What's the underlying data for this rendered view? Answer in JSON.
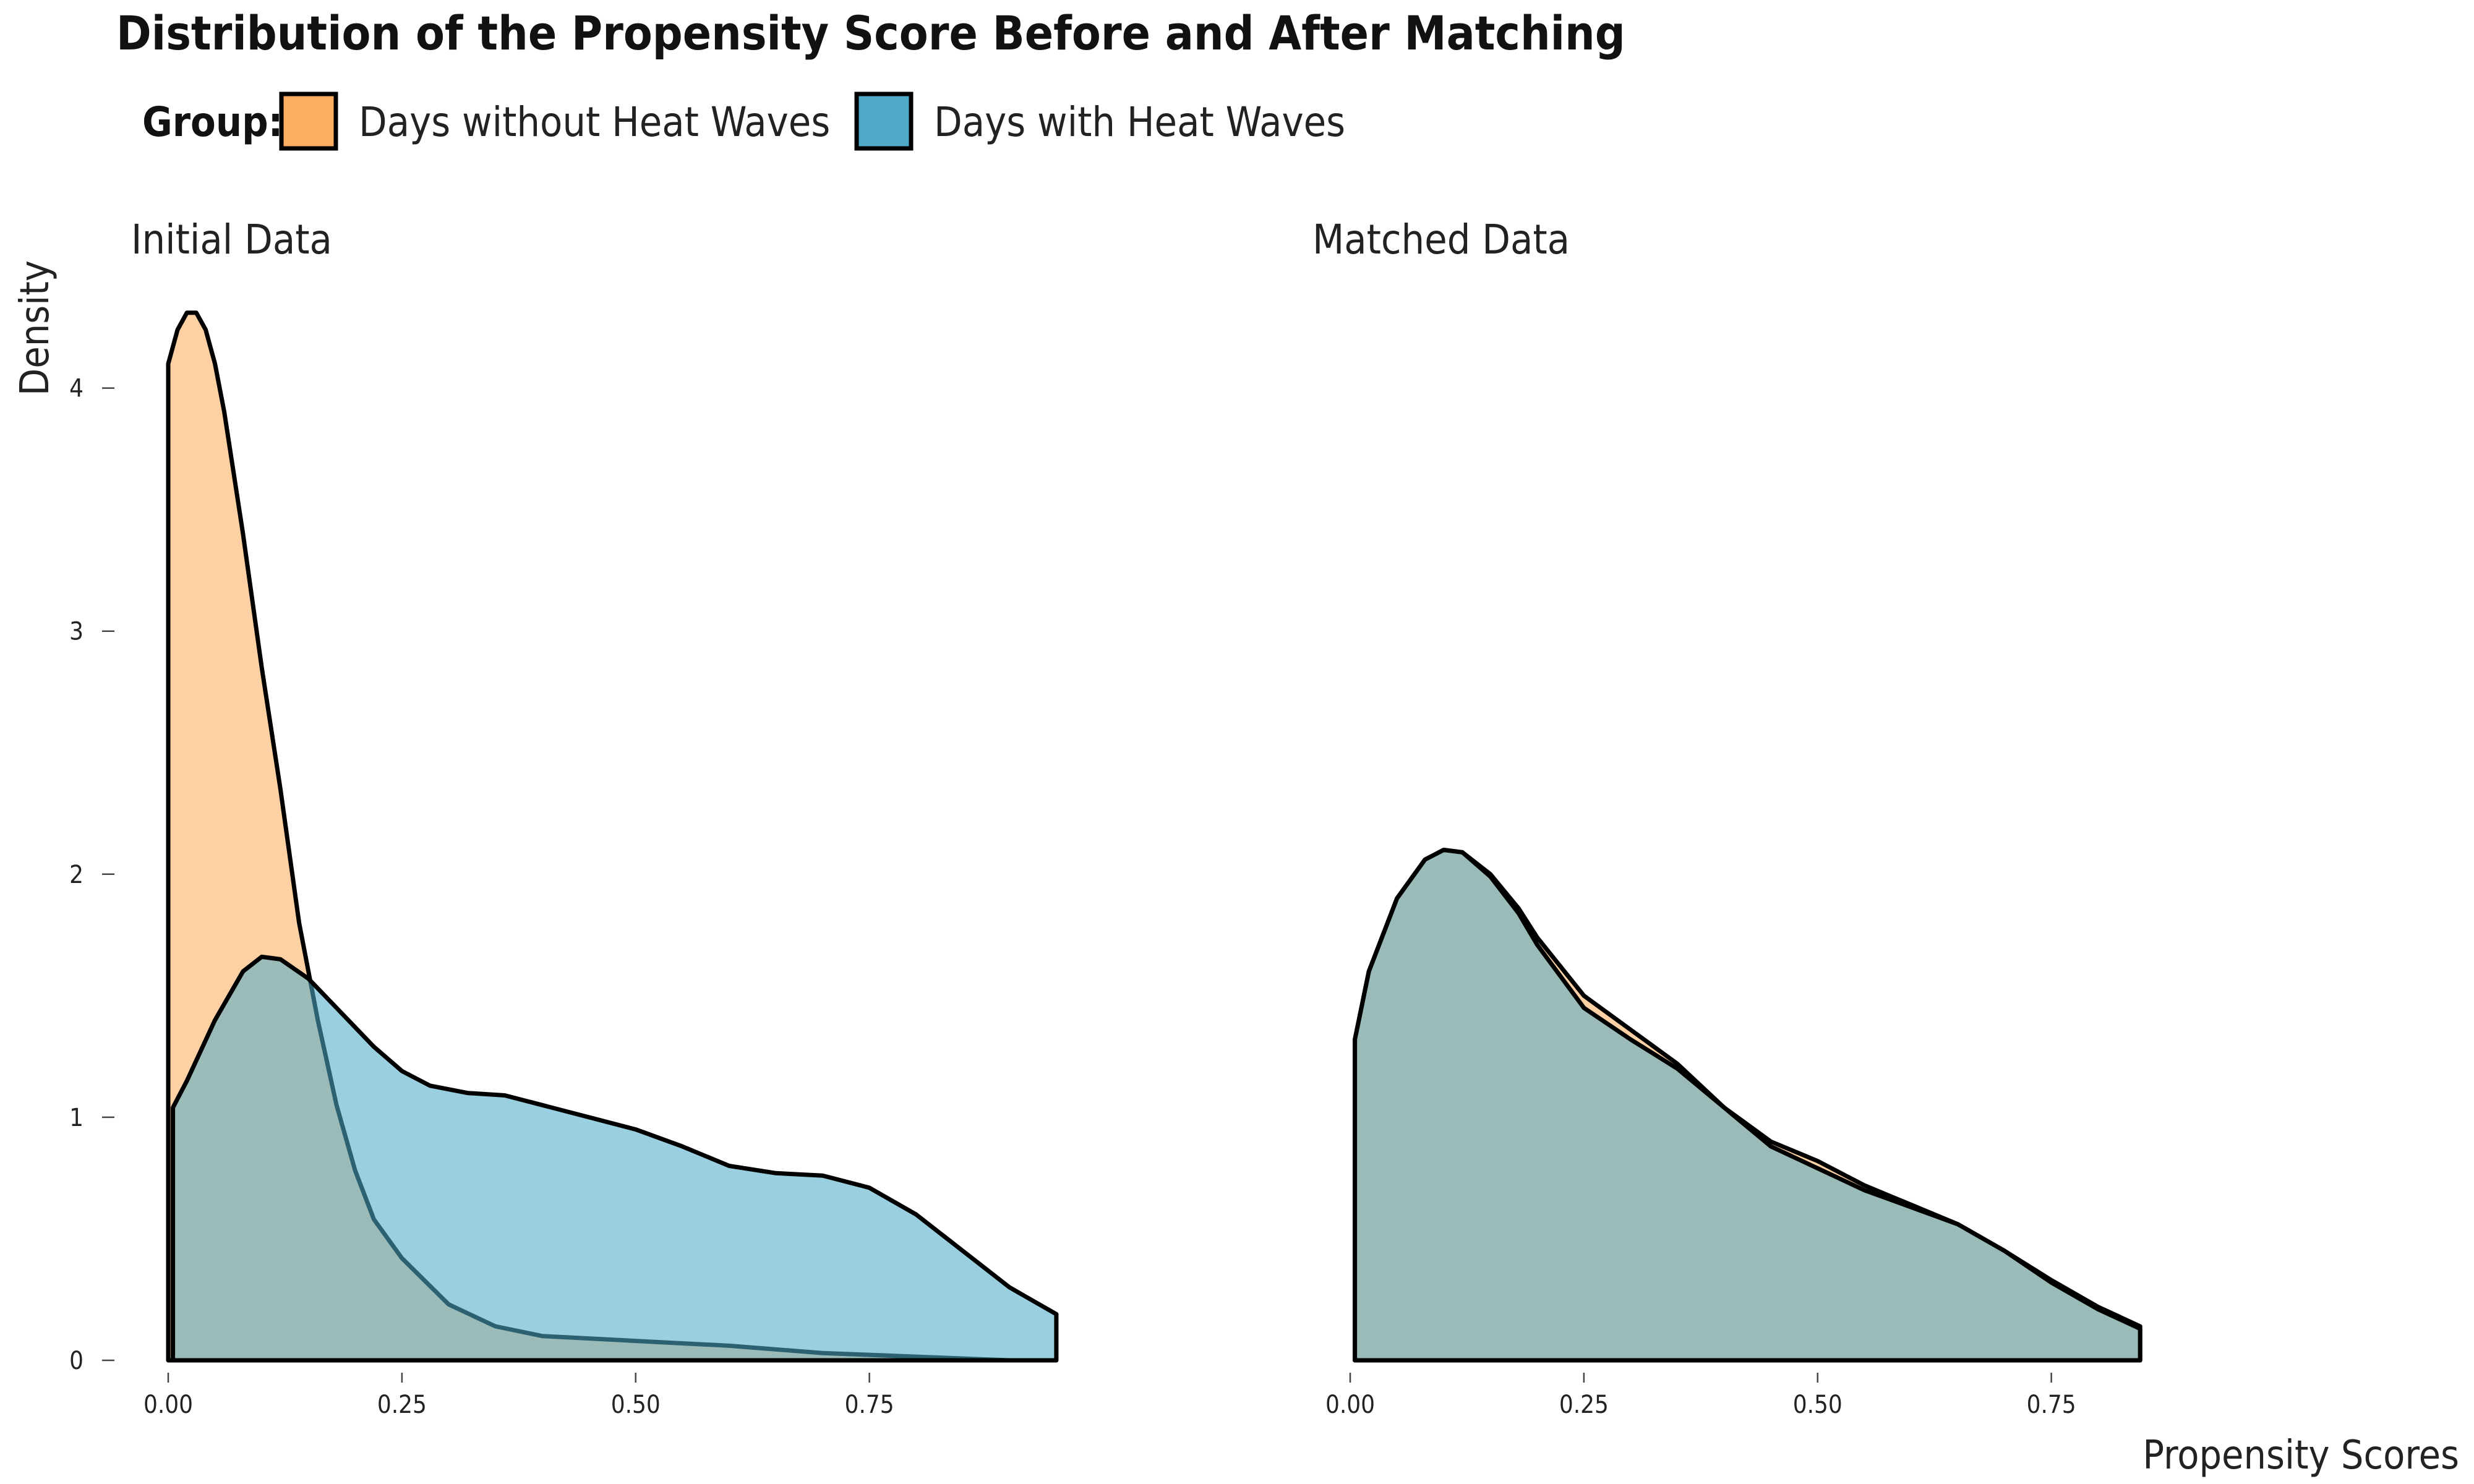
{
  "colors": {
    "without": "#fdae61",
    "with": "#4eaac7",
    "text": "#111111"
  },
  "chart_data": {
    "type": "area",
    "title": "Distribution of the Propensity Score Before and After Matching",
    "legend": {
      "title": "Group:",
      "placement": "top-left",
      "entries": [
        {
          "label": "Days without Heat Waves",
          "color": "#fdae61"
        },
        {
          "label": "Days with Heat Waves",
          "color": "#4eaac7"
        }
      ]
    },
    "ylabel": "Density",
    "xlabel": "Propensity Scores",
    "grid": false,
    "ylim": [
      0,
      4.35
    ],
    "yticks": [
      0,
      1,
      2,
      3,
      4
    ],
    "xticks": [
      0.0,
      0.25,
      0.5,
      0.75
    ],
    "xtick_labels": [
      "0.00",
      "0.25",
      "0.50",
      "0.75"
    ],
    "ytick_labels": [
      "0",
      "1",
      "2",
      "3",
      "4"
    ],
    "panels": [
      {
        "title": "Initial Data",
        "xlim": [
          0,
          0.95
        ],
        "series": [
          {
            "name": "Days without Heat Waves",
            "points": [
              [
                0.0,
                4.1
              ],
              [
                0.01,
                4.24
              ],
              [
                0.02,
                4.31
              ],
              [
                0.03,
                4.31
              ],
              [
                0.04,
                4.24
              ],
              [
                0.05,
                4.1
              ],
              [
                0.06,
                3.9
              ],
              [
                0.08,
                3.4
              ],
              [
                0.1,
                2.85
              ],
              [
                0.12,
                2.35
              ],
              [
                0.14,
                1.8
              ],
              [
                0.16,
                1.4
              ],
              [
                0.18,
                1.05
              ],
              [
                0.2,
                0.78
              ],
              [
                0.22,
                0.58
              ],
              [
                0.25,
                0.42
              ],
              [
                0.3,
                0.23
              ],
              [
                0.35,
                0.14
              ],
              [
                0.4,
                0.1
              ],
              [
                0.5,
                0.08
              ],
              [
                0.6,
                0.06
              ],
              [
                0.7,
                0.03
              ],
              [
                0.8,
                0.015
              ],
              [
                0.9,
                0.0
              ]
            ]
          },
          {
            "name": "Days with Heat Waves",
            "points": [
              [
                0.005,
                1.04
              ],
              [
                0.02,
                1.15
              ],
              [
                0.05,
                1.4
              ],
              [
                0.08,
                1.6
              ],
              [
                0.1,
                1.66
              ],
              [
                0.12,
                1.65
              ],
              [
                0.15,
                1.57
              ],
              [
                0.18,
                1.45
              ],
              [
                0.22,
                1.29
              ],
              [
                0.25,
                1.19
              ],
              [
                0.28,
                1.13
              ],
              [
                0.32,
                1.1
              ],
              [
                0.36,
                1.09
              ],
              [
                0.4,
                1.05
              ],
              [
                0.45,
                1.0
              ],
              [
                0.5,
                0.95
              ],
              [
                0.55,
                0.88
              ],
              [
                0.6,
                0.8
              ],
              [
                0.65,
                0.77
              ],
              [
                0.7,
                0.76
              ],
              [
                0.75,
                0.71
              ],
              [
                0.8,
                0.6
              ],
              [
                0.85,
                0.45
              ],
              [
                0.9,
                0.3
              ],
              [
                0.95,
                0.19
              ]
            ]
          }
        ]
      },
      {
        "title": "Matched Data",
        "xlim": [
          0,
          0.845
        ],
        "series": [
          {
            "name": "Days without Heat Waves",
            "points": [
              [
                0.005,
                1.32
              ],
              [
                0.02,
                1.6
              ],
              [
                0.05,
                1.9
              ],
              [
                0.08,
                2.06
              ],
              [
                0.1,
                2.1
              ],
              [
                0.12,
                2.09
              ],
              [
                0.15,
                2.0
              ],
              [
                0.18,
                1.86
              ],
              [
                0.2,
                1.74
              ],
              [
                0.25,
                1.5
              ],
              [
                0.3,
                1.36
              ],
              [
                0.35,
                1.22
              ],
              [
                0.4,
                1.04
              ],
              [
                0.45,
                0.9
              ],
              [
                0.5,
                0.82
              ],
              [
                0.55,
                0.72
              ],
              [
                0.6,
                0.64
              ],
              [
                0.65,
                0.56
              ],
              [
                0.7,
                0.45
              ],
              [
                0.75,
                0.33
              ],
              [
                0.8,
                0.22
              ],
              [
                0.845,
                0.14
              ]
            ]
          },
          {
            "name": "Days with Heat Waves",
            "points": [
              [
                0.005,
                1.32
              ],
              [
                0.02,
                1.6
              ],
              [
                0.05,
                1.9
              ],
              [
                0.08,
                2.06
              ],
              [
                0.1,
                2.1
              ],
              [
                0.12,
                2.09
              ],
              [
                0.15,
                1.99
              ],
              [
                0.18,
                1.84
              ],
              [
                0.2,
                1.71
              ],
              [
                0.25,
                1.45
              ],
              [
                0.3,
                1.32
              ],
              [
                0.35,
                1.2
              ],
              [
                0.4,
                1.04
              ],
              [
                0.45,
                0.88
              ],
              [
                0.5,
                0.79
              ],
              [
                0.55,
                0.7
              ],
              [
                0.6,
                0.63
              ],
              [
                0.65,
                0.56
              ],
              [
                0.7,
                0.45
              ],
              [
                0.75,
                0.32
              ],
              [
                0.8,
                0.21
              ],
              [
                0.845,
                0.13
              ]
            ]
          }
        ]
      }
    ]
  }
}
